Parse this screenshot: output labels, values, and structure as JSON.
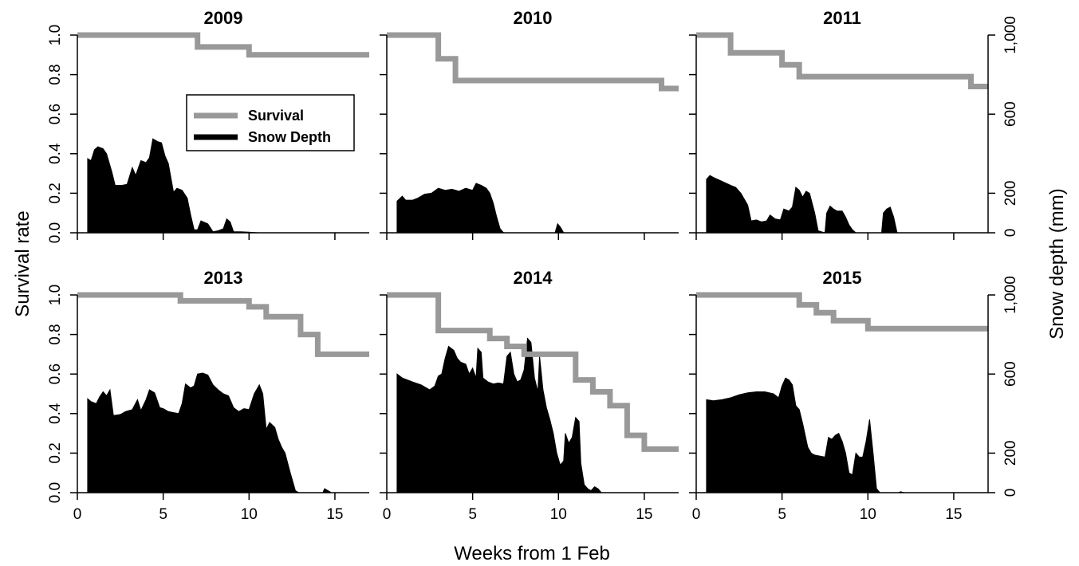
{
  "chart_data": {
    "type": "area",
    "xlabel": "Weeks from 1 Feb",
    "ylabel_left": "Survival rate",
    "ylabel_right": "Snow depth (mm)",
    "xlim": [
      0,
      17
    ],
    "ylim_left": [
      0,
      1
    ],
    "ylim_right": [
      0,
      1000
    ],
    "x_ticks": [
      "0",
      "5",
      "10",
      "15"
    ],
    "y_ticks_left": [
      "0.0",
      "0.2",
      "0.4",
      "0.6",
      "0.8",
      "1.0"
    ],
    "y_ticks_right": [
      "0",
      "200",
      "600",
      "1,000"
    ],
    "legend": {
      "placement": "inside top panel 2009",
      "entries": [
        {
          "label": "Survival",
          "color": "#999999"
        },
        {
          "label": "Snow Depth",
          "color": "#000000"
        }
      ]
    },
    "colors": {
      "survival": "#999999",
      "snow": "#000000"
    },
    "panels": [
      {
        "title": "2009",
        "survival": [
          [
            0,
            1.0
          ],
          [
            7,
            1.0
          ],
          [
            7,
            0.94
          ],
          [
            10,
            0.94
          ],
          [
            10,
            0.9
          ],
          [
            17,
            0.9
          ]
        ],
        "snow": [
          [
            0.6,
            375
          ],
          [
            0.8,
            365
          ],
          [
            1.0,
            420
          ],
          [
            1.2,
            435
          ],
          [
            1.5,
            425
          ],
          [
            1.7,
            400
          ],
          [
            2.0,
            310
          ],
          [
            2.2,
            240
          ],
          [
            2.6,
            240
          ],
          [
            2.9,
            245
          ],
          [
            3.2,
            330
          ],
          [
            3.4,
            290
          ],
          [
            3.7,
            365
          ],
          [
            4.0,
            355
          ],
          [
            4.2,
            380
          ],
          [
            4.4,
            475
          ],
          [
            4.7,
            460
          ],
          [
            4.9,
            455
          ],
          [
            5.1,
            390
          ],
          [
            5.3,
            350
          ],
          [
            5.6,
            205
          ],
          [
            5.8,
            225
          ],
          [
            6.1,
            215
          ],
          [
            6.4,
            175
          ],
          [
            6.6,
            90
          ],
          [
            6.8,
            15
          ],
          [
            7.0,
            15
          ],
          [
            7.2,
            60
          ],
          [
            7.6,
            45
          ],
          [
            7.9,
            5
          ],
          [
            8.2,
            10
          ],
          [
            8.5,
            20
          ],
          [
            8.7,
            70
          ],
          [
            8.9,
            55
          ],
          [
            9.1,
            5
          ],
          [
            9.5,
            5
          ],
          [
            10.0,
            3
          ],
          [
            10.5,
            0
          ]
        ]
      },
      {
        "title": "2010",
        "survival": [
          [
            0,
            1.0
          ],
          [
            3,
            1.0
          ],
          [
            3,
            0.88
          ],
          [
            4,
            0.88
          ],
          [
            4,
            0.77
          ],
          [
            16,
            0.77
          ],
          [
            16,
            0.73
          ],
          [
            17,
            0.73
          ]
        ],
        "snow": [
          [
            0.6,
            160
          ],
          [
            0.9,
            185
          ],
          [
            1.1,
            165
          ],
          [
            1.5,
            165
          ],
          [
            1.8,
            175
          ],
          [
            2.2,
            195
          ],
          [
            2.6,
            200
          ],
          [
            3.0,
            225
          ],
          [
            3.4,
            215
          ],
          [
            3.8,
            220
          ],
          [
            4.2,
            210
          ],
          [
            4.6,
            225
          ],
          [
            5.0,
            215
          ],
          [
            5.2,
            250
          ],
          [
            5.5,
            240
          ],
          [
            5.8,
            225
          ],
          [
            6.0,
            200
          ],
          [
            6.2,
            150
          ],
          [
            6.4,
            80
          ],
          [
            6.6,
            20
          ],
          [
            6.8,
            0
          ],
          [
            9.8,
            0
          ],
          [
            9.95,
            45
          ],
          [
            10.1,
            30
          ],
          [
            10.3,
            0
          ]
        ]
      },
      {
        "title": "2011",
        "survival": [
          [
            0,
            1.0
          ],
          [
            2,
            1.0
          ],
          [
            2,
            0.91
          ],
          [
            5,
            0.91
          ],
          [
            5,
            0.85
          ],
          [
            6,
            0.85
          ],
          [
            6,
            0.79
          ],
          [
            16,
            0.79
          ],
          [
            16,
            0.74
          ],
          [
            17,
            0.74
          ]
        ],
        "snow": [
          [
            0.6,
            270
          ],
          [
            0.8,
            290
          ],
          [
            1.0,
            280
          ],
          [
            1.5,
            260
          ],
          [
            2.0,
            240
          ],
          [
            2.3,
            230
          ],
          [
            2.6,
            200
          ],
          [
            3.0,
            140
          ],
          [
            3.2,
            60
          ],
          [
            3.5,
            65
          ],
          [
            3.8,
            55
          ],
          [
            4.1,
            60
          ],
          [
            4.3,
            90
          ],
          [
            4.6,
            70
          ],
          [
            4.9,
            65
          ],
          [
            5.1,
            120
          ],
          [
            5.4,
            110
          ],
          [
            5.6,
            130
          ],
          [
            5.8,
            230
          ],
          [
            6.0,
            215
          ],
          [
            6.2,
            180
          ],
          [
            6.4,
            210
          ],
          [
            6.6,
            200
          ],
          [
            6.9,
            100
          ],
          [
            7.1,
            10
          ],
          [
            7.3,
            5
          ],
          [
            7.5,
            0
          ],
          [
            7.6,
            100
          ],
          [
            7.8,
            135
          ],
          [
            8.0,
            120
          ],
          [
            8.2,
            110
          ],
          [
            8.5,
            110
          ],
          [
            8.7,
            80
          ],
          [
            8.9,
            40
          ],
          [
            9.1,
            15
          ],
          [
            9.3,
            0
          ],
          [
            10.8,
            0
          ],
          [
            10.9,
            100
          ],
          [
            11.1,
            120
          ],
          [
            11.3,
            130
          ],
          [
            11.5,
            80
          ],
          [
            11.7,
            0
          ]
        ]
      },
      {
        "title": "2013",
        "survival": [
          [
            0,
            1.0
          ],
          [
            6,
            1.0
          ],
          [
            6,
            0.97
          ],
          [
            10,
            0.97
          ],
          [
            10,
            0.94
          ],
          [
            11,
            0.94
          ],
          [
            11,
            0.89
          ],
          [
            13,
            0.89
          ],
          [
            13,
            0.8
          ],
          [
            14,
            0.8
          ],
          [
            14,
            0.7
          ],
          [
            17,
            0.7
          ]
        ],
        "snow": [
          [
            0.6,
            475
          ],
          [
            0.8,
            460
          ],
          [
            1.1,
            450
          ],
          [
            1.3,
            485
          ],
          [
            1.5,
            510
          ],
          [
            1.7,
            490
          ],
          [
            1.9,
            520
          ],
          [
            2.1,
            390
          ],
          [
            2.5,
            395
          ],
          [
            2.8,
            410
          ],
          [
            3.2,
            420
          ],
          [
            3.5,
            470
          ],
          [
            3.7,
            415
          ],
          [
            4.0,
            470
          ],
          [
            4.2,
            520
          ],
          [
            4.5,
            505
          ],
          [
            4.8,
            430
          ],
          [
            5.0,
            425
          ],
          [
            5.3,
            410
          ],
          [
            5.6,
            405
          ],
          [
            5.9,
            400
          ],
          [
            6.1,
            450
          ],
          [
            6.3,
            550
          ],
          [
            6.6,
            530
          ],
          [
            6.8,
            540
          ],
          [
            7.0,
            600
          ],
          [
            7.3,
            605
          ],
          [
            7.6,
            595
          ],
          [
            7.9,
            545
          ],
          [
            8.2,
            520
          ],
          [
            8.5,
            500
          ],
          [
            8.8,
            490
          ],
          [
            9.1,
            430
          ],
          [
            9.4,
            410
          ],
          [
            9.7,
            425
          ],
          [
            10.0,
            420
          ],
          [
            10.3,
            500
          ],
          [
            10.6,
            545
          ],
          [
            10.8,
            500
          ],
          [
            11.0,
            320
          ],
          [
            11.2,
            355
          ],
          [
            11.5,
            330
          ],
          [
            11.7,
            270
          ],
          [
            11.9,
            230
          ],
          [
            12.1,
            200
          ],
          [
            12.4,
            100
          ],
          [
            12.7,
            10
          ],
          [
            12.9,
            0
          ],
          [
            14.3,
            0
          ],
          [
            14.4,
            20
          ],
          [
            14.6,
            10
          ],
          [
            14.8,
            0
          ]
        ]
      },
      {
        "title": "2014",
        "survival": [
          [
            0,
            1.0
          ],
          [
            3,
            1.0
          ],
          [
            3,
            0.82
          ],
          [
            6,
            0.82
          ],
          [
            6,
            0.78
          ],
          [
            7,
            0.78
          ],
          [
            7,
            0.74
          ],
          [
            8,
            0.74
          ],
          [
            8,
            0.7
          ],
          [
            11,
            0.7
          ],
          [
            11,
            0.57
          ],
          [
            12,
            0.57
          ],
          [
            12,
            0.51
          ],
          [
            13,
            0.51
          ],
          [
            13,
            0.44
          ],
          [
            14,
            0.44
          ],
          [
            14,
            0.29
          ],
          [
            15,
            0.29
          ],
          [
            15,
            0.22
          ],
          [
            17,
            0.22
          ]
        ],
        "snow": [
          [
            0.6,
            600
          ],
          [
            0.9,
            580
          ],
          [
            1.5,
            560
          ],
          [
            2.0,
            545
          ],
          [
            2.5,
            520
          ],
          [
            2.8,
            540
          ],
          [
            3.0,
            590
          ],
          [
            3.2,
            600
          ],
          [
            3.4,
            680
          ],
          [
            3.6,
            740
          ],
          [
            3.9,
            720
          ],
          [
            4.1,
            680
          ],
          [
            4.3,
            660
          ],
          [
            4.6,
            650
          ],
          [
            4.8,
            600
          ],
          [
            5.0,
            630
          ],
          [
            5.2,
            580
          ],
          [
            5.3,
            730
          ],
          [
            5.5,
            710
          ],
          [
            5.6,
            580
          ],
          [
            5.9,
            560
          ],
          [
            6.2,
            550
          ],
          [
            6.5,
            555
          ],
          [
            6.8,
            550
          ],
          [
            7.0,
            690
          ],
          [
            7.2,
            710
          ],
          [
            7.4,
            600
          ],
          [
            7.6,
            560
          ],
          [
            7.8,
            570
          ],
          [
            8.0,
            620
          ],
          [
            8.2,
            780
          ],
          [
            8.4,
            760
          ],
          [
            8.6,
            580
          ],
          [
            8.8,
            510
          ],
          [
            8.9,
            690
          ],
          [
            9.1,
            520
          ],
          [
            9.3,
            430
          ],
          [
            9.5,
            370
          ],
          [
            9.7,
            300
          ],
          [
            9.9,
            200
          ],
          [
            10.1,
            140
          ],
          [
            10.3,
            160
          ],
          [
            10.4,
            300
          ],
          [
            10.6,
            250
          ],
          [
            10.8,
            280
          ],
          [
            11.0,
            380
          ],
          [
            11.2,
            360
          ],
          [
            11.3,
            150
          ],
          [
            11.5,
            40
          ],
          [
            11.7,
            20
          ],
          [
            11.9,
            10
          ],
          [
            12.1,
            30
          ],
          [
            12.3,
            20
          ],
          [
            12.5,
            0
          ]
        ]
      },
      {
        "title": "2015",
        "survival": [
          [
            0,
            1.0
          ],
          [
            6,
            1.0
          ],
          [
            6,
            0.95
          ],
          [
            7,
            0.95
          ],
          [
            7,
            0.91
          ],
          [
            8,
            0.91
          ],
          [
            8,
            0.87
          ],
          [
            10,
            0.87
          ],
          [
            10,
            0.83
          ],
          [
            17,
            0.83
          ]
        ],
        "snow": [
          [
            0.6,
            470
          ],
          [
            1.0,
            465
          ],
          [
            1.5,
            470
          ],
          [
            2.0,
            480
          ],
          [
            2.5,
            495
          ],
          [
            3.0,
            505
          ],
          [
            3.5,
            510
          ],
          [
            4.0,
            510
          ],
          [
            4.5,
            500
          ],
          [
            4.8,
            480
          ],
          [
            5.0,
            540
          ],
          [
            5.2,
            580
          ],
          [
            5.4,
            570
          ],
          [
            5.6,
            545
          ],
          [
            5.8,
            440
          ],
          [
            6.0,
            420
          ],
          [
            6.2,
            350
          ],
          [
            6.5,
            230
          ],
          [
            6.7,
            200
          ],
          [
            6.9,
            190
          ],
          [
            7.2,
            185
          ],
          [
            7.5,
            180
          ],
          [
            7.7,
            280
          ],
          [
            7.9,
            270
          ],
          [
            8.1,
            290
          ],
          [
            8.3,
            300
          ],
          [
            8.5,
            260
          ],
          [
            8.7,
            200
          ],
          [
            8.9,
            100
          ],
          [
            9.1,
            90
          ],
          [
            9.3,
            200
          ],
          [
            9.5,
            180
          ],
          [
            9.7,
            180
          ],
          [
            9.9,
            260
          ],
          [
            10.1,
            370
          ],
          [
            10.3,
            200
          ],
          [
            10.5,
            20
          ],
          [
            10.7,
            0
          ],
          [
            11.8,
            0
          ],
          [
            11.9,
            5
          ],
          [
            12.1,
            0
          ]
        ]
      }
    ]
  }
}
